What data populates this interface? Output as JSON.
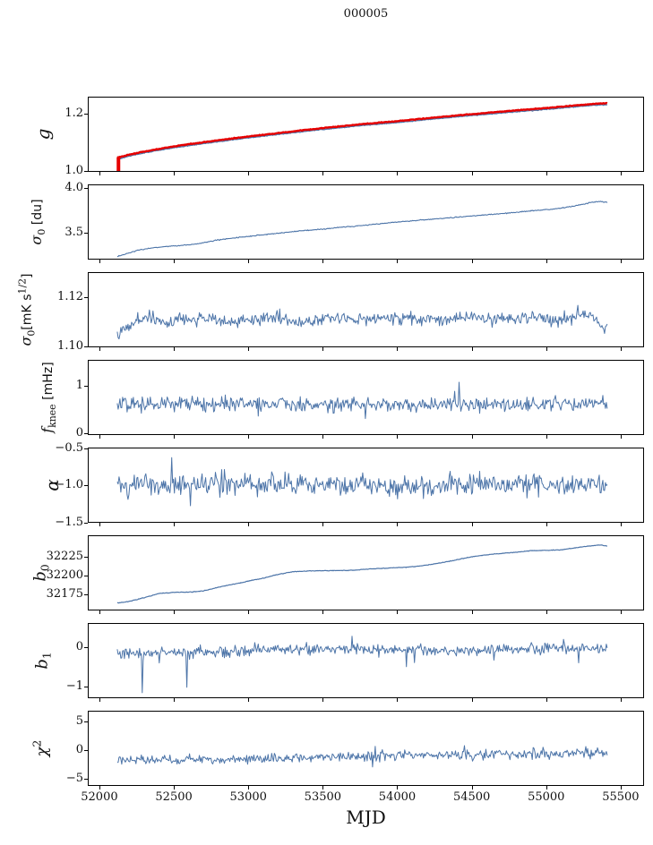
{
  "chart_data": {
    "type": "line",
    "title": "000005",
    "xlabel": "MJD",
    "colors": {
      "line_blue": "#4c74a8",
      "line_red": "#e60000",
      "axis": "#000000"
    },
    "x": {
      "lim": [
        51922,
        55657
      ],
      "data_range": [
        52120,
        55410
      ],
      "ticks": [
        {
          "v": 52000,
          "label": "52000"
        },
        {
          "v": 52500,
          "label": "52500"
        },
        {
          "v": 53000,
          "label": "53000"
        },
        {
          "v": 53500,
          "label": "53500"
        },
        {
          "v": 54000,
          "label": "54000"
        },
        {
          "v": 54500,
          "label": "54500"
        },
        {
          "v": 55000,
          "label": "55000"
        },
        {
          "v": 55500,
          "label": "55500"
        }
      ]
    },
    "panels": [
      {
        "id": "g",
        "ylabel": [
          {
            "t": "g",
            "s": "i"
          }
        ],
        "ylim": [
          0.9955,
          1.2601
        ],
        "yticks": [
          {
            "v": 1.2,
            "label": "1.2"
          },
          {
            "v": 1.0,
            "label": "1.0"
          }
        ],
        "series": [
          {
            "name": "gain-fit",
            "color": "#4c74a8",
            "w": 1.3,
            "seed": 101,
            "n": 600,
            "x0": 52120,
            "x1": 55410,
            "noise": 0.0012,
            "spiky": false,
            "trend": [
              [
                52120,
                1.04
              ],
              [
                52200,
                1.051
              ],
              [
                52300,
                1.062
              ],
              [
                52450,
                1.076
              ],
              [
                52600,
                1.088
              ],
              [
                52800,
                1.102
              ],
              [
                53000,
                1.115
              ],
              [
                53200,
                1.127
              ],
              [
                53400,
                1.139
              ],
              [
                53600,
                1.15
              ],
              [
                53800,
                1.16
              ],
              [
                54000,
                1.169
              ],
              [
                54200,
                1.179
              ],
              [
                54400,
                1.189
              ],
              [
                54600,
                1.198
              ],
              [
                54800,
                1.207
              ],
              [
                55000,
                1.215
              ],
              [
                55150,
                1.222
              ],
              [
                55300,
                1.229
              ],
              [
                55410,
                1.232
              ]
            ]
          },
          {
            "name": "gain-smoothed",
            "color": "#e60000",
            "w": 2.4,
            "seed": 102,
            "n": 600,
            "x0": 52120,
            "x1": 55410,
            "noise": 0.0011,
            "spiky": false,
            "errorbar": {
              "x": 52128,
              "y0": 0.996,
              "y1": 1.047,
              "w": 4
            },
            "trend": [
              [
                52120,
                1.045
              ],
              [
                52200,
                1.056
              ],
              [
                52300,
                1.067
              ],
              [
                52450,
                1.081
              ],
              [
                52600,
                1.093
              ],
              [
                52800,
                1.107
              ],
              [
                53000,
                1.12
              ],
              [
                53200,
                1.132
              ],
              [
                53400,
                1.144
              ],
              [
                53600,
                1.155
              ],
              [
                53800,
                1.165
              ],
              [
                54000,
                1.174
              ],
              [
                54200,
                1.184
              ],
              [
                54400,
                1.194
              ],
              [
                54600,
                1.203
              ],
              [
                54800,
                1.212
              ],
              [
                55000,
                1.22
              ],
              [
                55150,
                1.227
              ],
              [
                55300,
                1.234
              ],
              [
                55410,
                1.237
              ]
            ]
          }
        ]
      },
      {
        "id": "sigma0_du",
        "ylabel": [
          {
            "t": "σ",
            "s": "i"
          },
          {
            "t": "0",
            "s": "sub"
          },
          {
            "t": " [du]",
            "s": "u"
          }
        ],
        "ylim": [
          3.195,
          4.035
        ],
        "yticks": [
          {
            "v": 4.0,
            "label": "4.0"
          },
          {
            "v": 3.5,
            "label": "3.5"
          }
        ],
        "series": [
          {
            "name": "sigma0-du",
            "color": "#4c74a8",
            "w": 1.1,
            "seed": 201,
            "n": 600,
            "x0": 52120,
            "x1": 55410,
            "noise": 0.0045,
            "spiky": false,
            "trend": [
              [
                52120,
                3.23
              ],
              [
                52260,
                3.3
              ],
              [
                52400,
                3.335
              ],
              [
                52520,
                3.35
              ],
              [
                52640,
                3.365
              ],
              [
                52780,
                3.41
              ],
              [
                52920,
                3.44
              ],
              [
                53060,
                3.465
              ],
              [
                53200,
                3.49
              ],
              [
                53340,
                3.515
              ],
              [
                53460,
                3.53
              ],
              [
                53580,
                3.55
              ],
              [
                53700,
                3.565
              ],
              [
                53850,
                3.59
              ],
              [
                54000,
                3.615
              ],
              [
                54150,
                3.635
              ],
              [
                54300,
                3.655
              ],
              [
                54450,
                3.675
              ],
              [
                54600,
                3.695
              ],
              [
                54750,
                3.715
              ],
              [
                54900,
                3.74
              ],
              [
                55050,
                3.76
              ],
              [
                55180,
                3.79
              ],
              [
                55290,
                3.83
              ],
              [
                55360,
                3.845
              ],
              [
                55410,
                3.835
              ]
            ]
          }
        ]
      },
      {
        "id": "sigma0_mK",
        "ylabel": [
          {
            "t": "σ",
            "s": "i"
          },
          {
            "t": "0",
            "s": "sub"
          },
          {
            "t": "[mK s",
            "s": "u"
          },
          {
            "t": "1/2",
            "s": "sup"
          },
          {
            "t": "]",
            "s": "u"
          }
        ],
        "ylim": [
          1.0996,
          1.1302
        ],
        "yticks": [
          {
            "v": 1.12,
            "label": "1.12"
          },
          {
            "v": 1.1,
            "label": "1.10"
          }
        ],
        "series": [
          {
            "name": "sigma0-mK",
            "color": "#4c74a8",
            "w": 1.0,
            "seed": 301,
            "n": 550,
            "x0": 52120,
            "x1": 55410,
            "noise": 0.0021,
            "spiky": true,
            "trend": [
              [
                52120,
                1.1045
              ],
              [
                52160,
                1.1075
              ],
              [
                52250,
                1.1105
              ],
              [
                52350,
                1.1125
              ],
              [
                52450,
                1.109
              ],
              [
                52550,
                1.111
              ],
              [
                52700,
                1.1115
              ],
              [
                52850,
                1.11
              ],
              [
                53000,
                1.1105
              ],
              [
                53150,
                1.1115
              ],
              [
                53300,
                1.11
              ],
              [
                53500,
                1.1115
              ],
              [
                53700,
                1.1105
              ],
              [
                53900,
                1.111
              ],
              [
                54100,
                1.1115
              ],
              [
                54300,
                1.1105
              ],
              [
                54500,
                1.1125
              ],
              [
                54650,
                1.111
              ],
              [
                54800,
                1.1115
              ],
              [
                54950,
                1.112
              ],
              [
                55100,
                1.1105
              ],
              [
                55250,
                1.1135
              ],
              [
                55330,
                1.112
              ],
              [
                55380,
                1.107
              ],
              [
                55410,
                1.108
              ]
            ]
          }
        ]
      },
      {
        "id": "f_knee",
        "ylabel": [
          {
            "t": "f",
            "s": "i"
          },
          {
            "t": "knee",
            "s": "sub"
          },
          {
            "t": " [mHz]",
            "s": "u"
          }
        ],
        "ylim": [
          -0.04,
          1.545
        ],
        "yticks": [
          {
            "v": 1,
            "label": "1"
          },
          {
            "v": 0,
            "label": "0"
          }
        ],
        "series": [
          {
            "name": "f-knee",
            "color": "#4c74a8",
            "w": 1.0,
            "seed": 401,
            "n": 550,
            "x0": 52120,
            "x1": 55410,
            "noise": 0.13,
            "spiky": true,
            "trend": [
              [
                52120,
                0.6
              ],
              [
                53000,
                0.61
              ],
              [
                54000,
                0.6
              ],
              [
                55410,
                0.62
              ]
            ]
          }
        ]
      },
      {
        "id": "alpha",
        "ylabel": [
          {
            "t": "α",
            "s": "i"
          }
        ],
        "ylim": [
          -1.505,
          -0.49
        ],
        "yticks": [
          {
            "v": -0.5,
            "label": "−0.5"
          },
          {
            "v": -1.0,
            "label": "−1.0"
          },
          {
            "v": -1.5,
            "label": "−1.5"
          }
        ],
        "series": [
          {
            "name": "alpha",
            "color": "#4c74a8",
            "w": 1.0,
            "seed": 501,
            "n": 550,
            "x0": 52120,
            "x1": 55410,
            "noise": 0.12,
            "spiky": true,
            "trend": [
              [
                52120,
                -1.0
              ],
              [
                53500,
                -1.0
              ],
              [
                55410,
                -0.99
              ]
            ]
          }
        ]
      },
      {
        "id": "b0",
        "ylabel": [
          {
            "t": "b",
            "s": "i"
          },
          {
            "t": "0",
            "s": "sub"
          }
        ],
        "ylim": [
          32153,
          32253
        ],
        "yticks": [
          {
            "v": 32225,
            "label": "32225"
          },
          {
            "v": 32200,
            "label": "32200"
          },
          {
            "v": 32175,
            "label": "32175"
          }
        ],
        "series": [
          {
            "name": "b0",
            "color": "#4c74a8",
            "w": 1.2,
            "seed": 601,
            "n": 600,
            "x0": 52120,
            "x1": 55410,
            "noise": 0.35,
            "spiky": false,
            "trend": [
              [
                52120,
                32163
              ],
              [
                52200,
                32165
              ],
              [
                52300,
                32170
              ],
              [
                52400,
                32175.5
              ],
              [
                52500,
                32177
              ],
              [
                52620,
                32177.5
              ],
              [
                52700,
                32179
              ],
              [
                52800,
                32184
              ],
              [
                52900,
                32188
              ],
              [
                53000,
                32192
              ],
              [
                53100,
                32196
              ],
              [
                53200,
                32201
              ],
              [
                53300,
                32204.5
              ],
              [
                53400,
                32205.5
              ],
              [
                53550,
                32206
              ],
              [
                53700,
                32206.5
              ],
              [
                53800,
                32208
              ],
              [
                53950,
                32209.5
              ],
              [
                54050,
                32210.5
              ],
              [
                54150,
                32212
              ],
              [
                54250,
                32215
              ],
              [
                54350,
                32218.5
              ],
              [
                54450,
                32222.5
              ],
              [
                54550,
                32226
              ],
              [
                54650,
                32228
              ],
              [
                54800,
                32230.5
              ],
              [
                54900,
                32232.5
              ],
              [
                55000,
                32233
              ],
              [
                55100,
                32233.5
              ],
              [
                55200,
                32236.5
              ],
              [
                55300,
                32239
              ],
              [
                55370,
                32240
              ],
              [
                55410,
                32238.5
              ]
            ]
          }
        ]
      },
      {
        "id": "b1",
        "ylabel": [
          {
            "t": "b",
            "s": "i"
          },
          {
            "t": "1",
            "s": "sub"
          }
        ],
        "ylim": [
          -1.3,
          0.63
        ],
        "yticks": [
          {
            "v": 0,
            "label": "0"
          },
          {
            "v": -1,
            "label": "−1"
          }
        ],
        "series": [
          {
            "name": "b1",
            "color": "#4c74a8",
            "w": 1.0,
            "seed": 701,
            "n": 550,
            "x0": 52120,
            "x1": 55410,
            "noise": 0.12,
            "spiky": true,
            "spikes": [
              [
                52290,
                -1.16
              ],
              [
                52590,
                -1.02
              ]
            ],
            "trend": [
              [
                52120,
                -0.15
              ],
              [
                52700,
                -0.12
              ],
              [
                53200,
                -0.05
              ],
              [
                53800,
                -0.04
              ],
              [
                54300,
                -0.09
              ],
              [
                54700,
                -0.05
              ],
              [
                55000,
                -0.03
              ],
              [
                55410,
                0.0
              ]
            ]
          }
        ]
      },
      {
        "id": "chi2",
        "ylabel": [
          {
            "t": "χ",
            "s": "i"
          },
          {
            "t": "2",
            "s": "sup"
          }
        ],
        "ylim": [
          -6.3,
          6.95
        ],
        "yticks": [
          {
            "v": 5,
            "label": "5"
          },
          {
            "v": 0,
            "label": "0"
          },
          {
            "v": -5,
            "label": "−5"
          }
        ],
        "series": [
          {
            "name": "chi2",
            "color": "#4c74a8",
            "w": 1.0,
            "seed": 801,
            "n": 550,
            "x0": 52120,
            "x1": 55410,
            "noise": 0.72,
            "spiky": true,
            "trend": [
              [
                52120,
                -1.75
              ],
              [
                52500,
                -1.8
              ],
              [
                52900,
                -1.6
              ],
              [
                53300,
                -1.3
              ],
              [
                53700,
                -1.1
              ],
              [
                54100,
                -0.85
              ],
              [
                54500,
                -0.75
              ],
              [
                54900,
                -0.65
              ],
              [
                55200,
                -0.55
              ],
              [
                55410,
                -0.6
              ]
            ]
          }
        ]
      }
    ]
  }
}
